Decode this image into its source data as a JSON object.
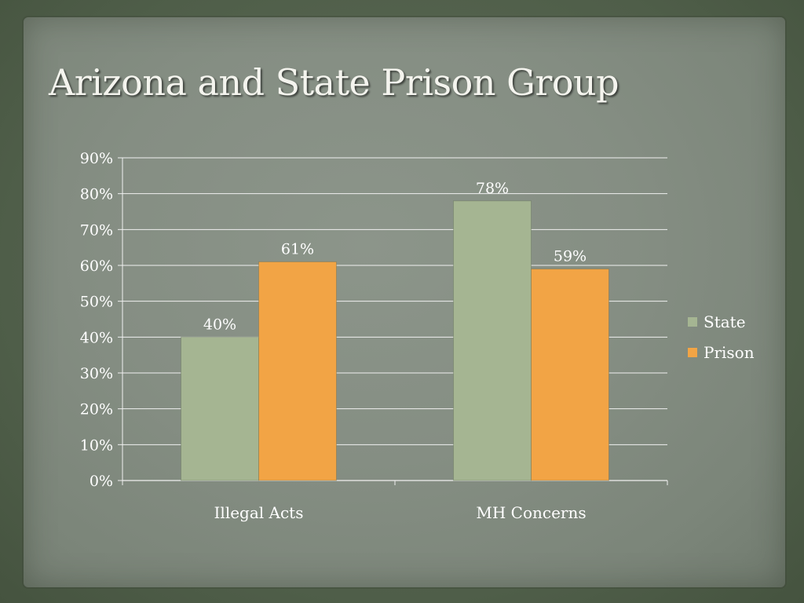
{
  "slide": {
    "title": "Arizona and State Prison Group"
  },
  "colors": {
    "state": "#a5b592",
    "prison": "#f2a445",
    "grid": "#f0f0f0",
    "text": "#ffffff"
  },
  "chart_data": {
    "type": "bar",
    "title": "Arizona and State Prison Group",
    "categories": [
      "Illegal Acts",
      "MH Concerns"
    ],
    "series": [
      {
        "name": "State",
        "values": [
          40,
          78
        ],
        "labels": [
          "40%",
          "78%"
        ]
      },
      {
        "name": "Prison",
        "values": [
          61,
          59
        ],
        "labels": [
          "61%",
          "59%"
        ]
      }
    ],
    "ylim": [
      0,
      90
    ],
    "yticks": [
      0,
      10,
      20,
      30,
      40,
      50,
      60,
      70,
      80,
      90
    ],
    "ytick_labels": [
      "0%",
      "10%",
      "20%",
      "30%",
      "40%",
      "50%",
      "60%",
      "70%",
      "80%",
      "90%"
    ],
    "xlabel": "",
    "ylabel": "",
    "grid": true,
    "legend": "right"
  }
}
